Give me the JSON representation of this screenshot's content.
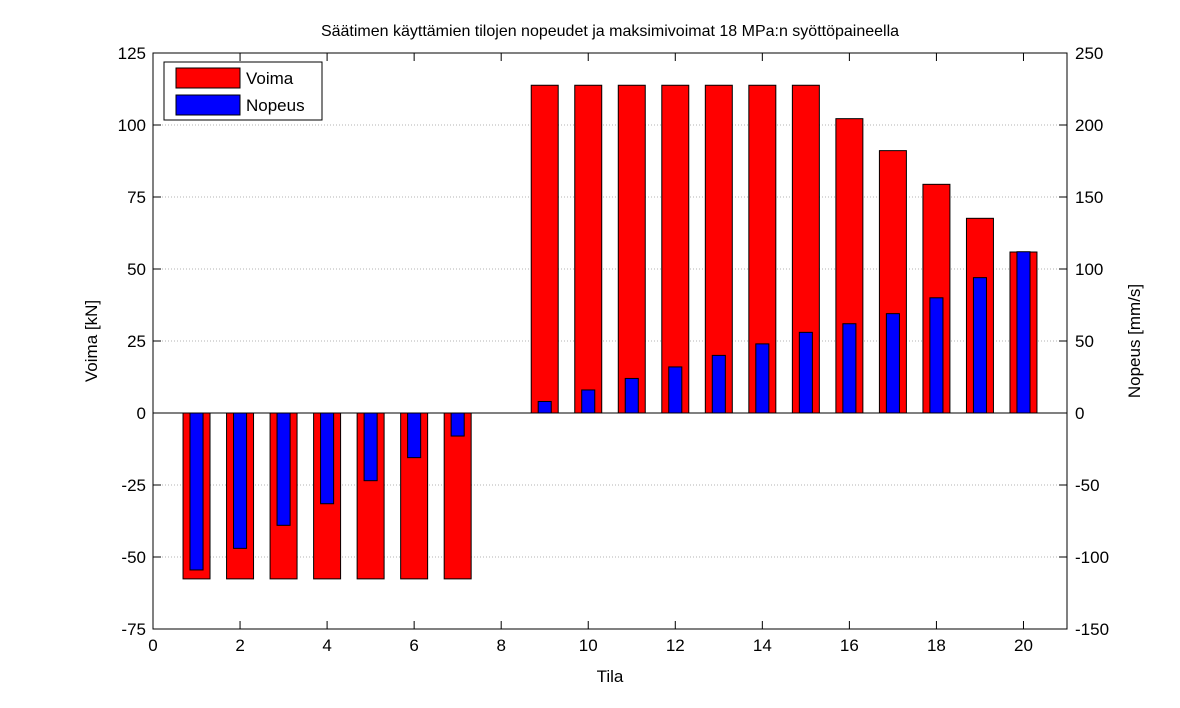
{
  "chart_data": {
    "type": "bar",
    "title": "Säätimen käyttämien tilojen nopeudet ja maksimivoimat 18 MPa:n syöttöpaineella",
    "xlabel": "Tila",
    "ylabel": "Voima [kN]",
    "y2label": "Nopeus [mm/s]",
    "xlim": [
      0,
      21
    ],
    "ylim": [
      -75,
      125
    ],
    "y2lim": [
      -150,
      250
    ],
    "xticks": [
      0,
      2,
      4,
      6,
      8,
      10,
      12,
      14,
      16,
      18,
      20
    ],
    "yticks": [
      -75,
      -50,
      -25,
      0,
      25,
      50,
      75,
      100,
      125
    ],
    "y2ticks": [
      -150,
      -100,
      -50,
      0,
      50,
      100,
      150,
      200,
      250
    ],
    "grid": "horizontal-dotted",
    "legend_position": "top-left",
    "x": [
      1,
      2,
      3,
      4,
      5,
      6,
      7,
      9,
      10,
      11,
      12,
      13,
      14,
      15,
      16,
      17,
      18,
      19,
      20
    ],
    "series": [
      {
        "name": "Voima",
        "axis": "left",
        "color": "#ff0000",
        "values": [
          -57.6,
          -57.6,
          -57.6,
          -57.6,
          -57.6,
          -57.6,
          -57.6,
          113.8,
          113.8,
          113.8,
          113.8,
          113.8,
          113.8,
          113.8,
          102.2,
          91.1,
          79.4,
          67.6,
          55.9
        ]
      },
      {
        "name": "Nopeus",
        "axis": "right",
        "color": "#0000ff",
        "values": [
          -109,
          -94,
          -78,
          -63,
          -47,
          -31,
          -16,
          8,
          16,
          24,
          32,
          40,
          48,
          56,
          62,
          69,
          80,
          94,
          112
        ]
      }
    ]
  }
}
